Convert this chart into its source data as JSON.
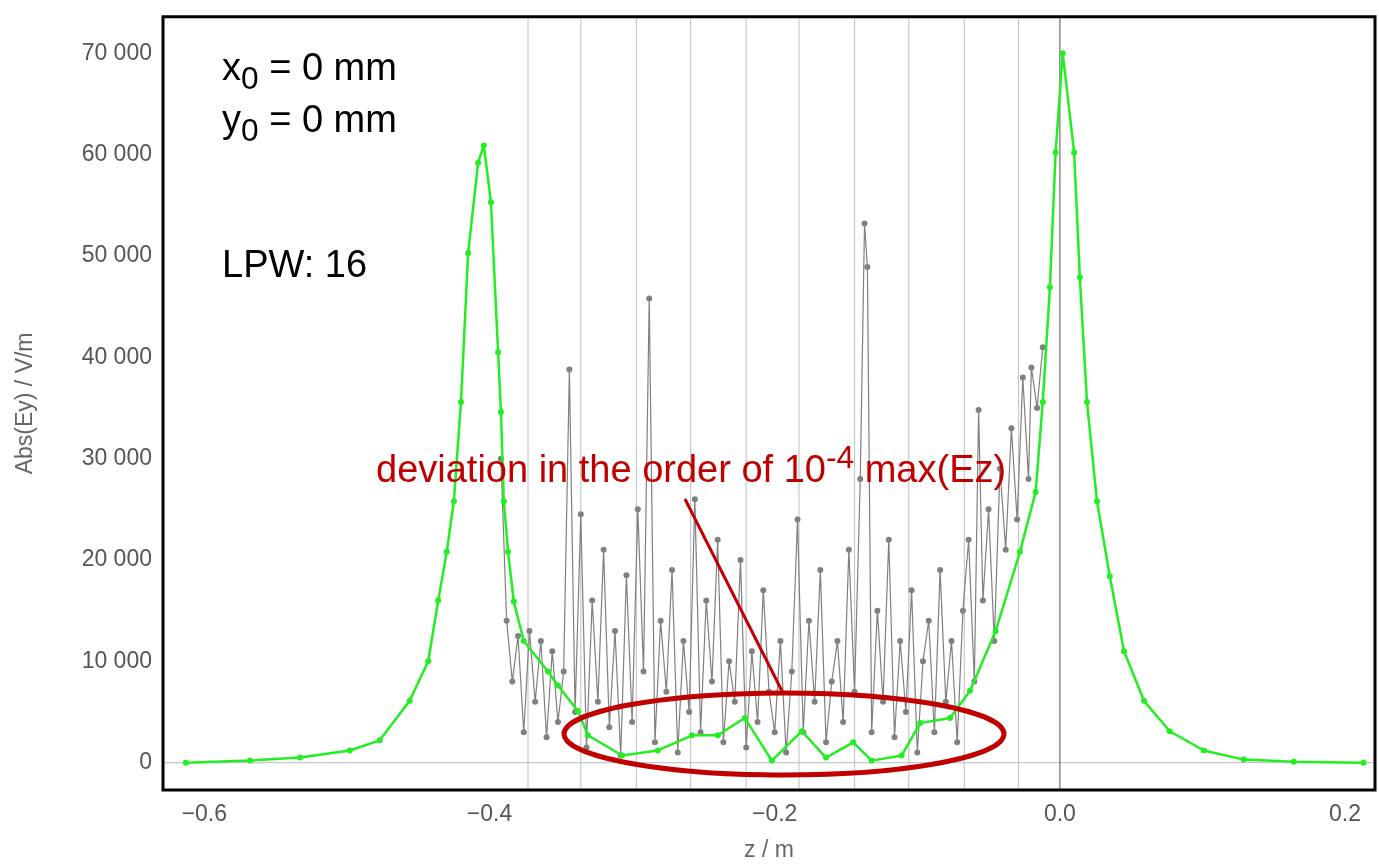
{
  "chart_data": {
    "type": "line",
    "xlabel": "z / m",
    "ylabel": "Abs(Ey) / V/m",
    "xlim": [
      -0.629,
      0.221
    ],
    "ylim": [
      -2700,
      73600
    ],
    "xticks": [
      {
        "value": -0.6,
        "label": "−0.6"
      },
      {
        "value": -0.4,
        "label": "−0.4"
      },
      {
        "value": -0.2,
        "label": "−0.2"
      },
      {
        "value": 0,
        "label": "0.0"
      },
      {
        "value": 0.2,
        "label": "0.2"
      }
    ],
    "yticks": [
      0,
      {
        "value": 10000,
        "label": "10 000"
      },
      {
        "value": 20000,
        "label": "20 000"
      },
      {
        "value": 30000,
        "label": "30 000"
      },
      {
        "value": 40000,
        "label": "40 000"
      },
      {
        "value": 50000,
        "label": "50 000"
      },
      {
        "value": 60000,
        "label": "60 000"
      },
      {
        "value": 70000,
        "label": "70 000"
      }
    ],
    "grid": false,
    "legend": false,
    "marker": "circle",
    "line_style": "solid",
    "ref_lines": [
      {
        "axis": "y",
        "value": 0,
        "color": "#c8c8c8"
      },
      {
        "axis": "x",
        "value": -0.373,
        "color": "#c8c8c8"
      },
      {
        "axis": "x",
        "value": -0.336,
        "color": "#c8c8c8"
      },
      {
        "axis": "x",
        "value": -0.297,
        "color": "#c8c8c8"
      },
      {
        "axis": "x",
        "value": -0.259,
        "color": "#c8c8c8"
      },
      {
        "axis": "x",
        "value": -0.22,
        "color": "#c8c8c8"
      },
      {
        "axis": "x",
        "value": -0.183,
        "color": "#c8c8c8"
      },
      {
        "axis": "x",
        "value": -0.144,
        "color": "#c8c8c8"
      },
      {
        "axis": "x",
        "value": -0.106,
        "color": "#c8c8c8"
      },
      {
        "axis": "x",
        "value": -0.067,
        "color": "#c8c8c8"
      },
      {
        "axis": "x",
        "value": -0.029,
        "color": "#c8c8c8"
      },
      {
        "axis": "x",
        "value": 0,
        "color": "#707070"
      }
    ],
    "annotations": [
      "x$_{0}$ = 0 mm",
      "y$_{0}$ = 0 mm",
      "LPW: 16",
      {
        "text": "deviation in the order of 10$^{-4}$ max(Ez)",
        "x": -0.195,
        "y": 7100
      }
    ],
    "series": [
      {
        "color": "#808080",
        "x": [
          -0.392,
          -0.388,
          -0.384,
          -0.38,
          -0.376,
          -0.372,
          -0.368,
          -0.364,
          -0.36,
          -0.356,
          -0.352,
          -0.348,
          -0.344,
          -0.34,
          -0.336,
          -0.332,
          -0.328,
          -0.324,
          -0.32,
          -0.316,
          -0.312,
          -0.308,
          -0.304,
          -0.3,
          -0.296,
          -0.292,
          -0.288,
          -0.284,
          -0.28,
          -0.276,
          -0.272,
          -0.268,
          -0.264,
          -0.26,
          -0.256,
          -0.252,
          -0.248,
          -0.244,
          -0.24,
          -0.236,
          -0.232,
          -0.228,
          -0.224,
          -0.22,
          -0.216,
          -0.212,
          -0.208,
          -0.204,
          -0.2,
          -0.196,
          -0.192,
          -0.188,
          -0.184,
          -0.18,
          -0.176,
          -0.172,
          -0.168,
          -0.164,
          -0.16,
          -0.156,
          -0.152,
          -0.148,
          -0.144,
          -0.14,
          -0.137,
          -0.135,
          -0.132,
          -0.128,
          -0.124,
          -0.12,
          -0.116,
          -0.112,
          -0.108,
          -0.104,
          -0.1,
          -0.096,
          -0.092,
          -0.088,
          -0.084,
          -0.08,
          -0.076,
          -0.072,
          -0.068,
          -0.064,
          -0.06,
          -0.057,
          -0.054,
          -0.05,
          -0.046,
          -0.042,
          -0.038,
          -0.034,
          -0.03,
          -0.026,
          -0.022,
          -0.02,
          -0.016,
          -0.012
        ],
        "values": [
          30000,
          14000,
          8000,
          12500,
          3000,
          13000,
          6000,
          12000,
          2500,
          11000,
          4000,
          9000,
          38800,
          5000,
          24500,
          1500,
          16000,
          6000,
          21000,
          3500,
          13000,
          700,
          18500,
          4000,
          25000,
          9000,
          45800,
          2000,
          14000,
          7000,
          19000,
          1000,
          12000,
          5000,
          26000,
          3000,
          16000,
          8000,
          22000,
          2000,
          10000,
          6000,
          20000,
          1500,
          11000,
          4000,
          17000,
          7000,
          3000,
          12000,
          1000,
          9000,
          24000,
          3000,
          14000,
          6000,
          19000,
          2000,
          8000,
          12000,
          4000,
          21000,
          7000,
          28000,
          53200,
          48900,
          3000,
          15000,
          6000,
          22000,
          2500,
          12000,
          5000,
          17000,
          1000,
          10000,
          14000,
          3000,
          19000,
          6000,
          12000,
          2000,
          15000,
          22000,
          8000,
          34800,
          16000,
          25000,
          12000,
          29000,
          21000,
          33000,
          24000,
          38000,
          28000,
          39000,
          35000,
          41000
        ]
      },
      {
        "color": "#22ee22",
        "x": [
          -0.613,
          -0.568,
          -0.533,
          -0.498,
          -0.477,
          -0.456,
          -0.443,
          -0.436,
          -0.43,
          -0.425,
          -0.42,
          -0.415,
          -0.408,
          -0.404,
          -0.399,
          -0.394,
          -0.392,
          -0.39,
          -0.387,
          -0.383,
          -0.376,
          -0.359,
          -0.352,
          -0.338,
          -0.331,
          -0.307,
          -0.282,
          -0.258,
          -0.24,
          -0.221,
          -0.202,
          -0.181,
          -0.164,
          -0.145,
          -0.132,
          -0.111,
          -0.098,
          -0.077,
          -0.063,
          -0.045,
          -0.028,
          -0.017,
          -0.012,
          -0.007,
          -0.003,
          0.002,
          0.01,
          0.014,
          0.019,
          0.026,
          0.035,
          0.045,
          0.059,
          0.077,
          0.101,
          0.129,
          0.164,
          0.213
        ],
        "values": [
          0,
          200,
          500,
          1200,
          2200,
          6100,
          10000,
          16000,
          20800,
          25800,
          35600,
          50300,
          59200,
          60900,
          55300,
          40500,
          34600,
          25800,
          20800,
          15900,
          12000,
          9000,
          7600,
          5100,
          2700,
          700,
          1200,
          2700,
          2700,
          4400,
          200,
          3100,
          500,
          2000,
          200,
          700,
          3900,
          4400,
          7100,
          13000,
          20800,
          26700,
          35600,
          46900,
          60200,
          70000,
          60200,
          47900,
          35600,
          25800,
          18400,
          11000,
          6100,
          3100,
          1200,
          300,
          100,
          0
        ]
      }
    ]
  }
}
